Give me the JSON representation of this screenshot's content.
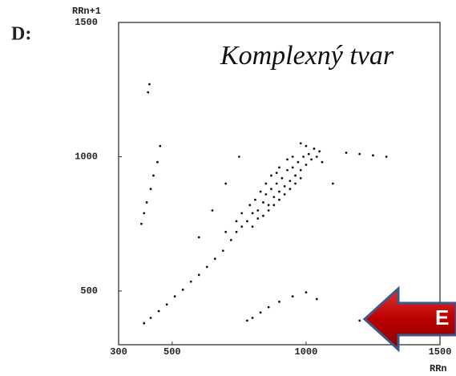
{
  "chart_data": {
    "type": "scatter",
    "panel_label": "D:",
    "annotation": "Komplexný tvar",
    "y_label": "RRn+1",
    "x_label": "RRn",
    "arrow_label": "E",
    "color": "#111111",
    "xlim": [
      300,
      1500
    ],
    "ylim": [
      300,
      1500
    ],
    "xticks": [
      300,
      500,
      1000,
      1500
    ],
    "yticks": [
      500,
      1000,
      1500
    ],
    "x": [
      395,
      420,
      450,
      480,
      510,
      540,
      570,
      600,
      630,
      660,
      690,
      720,
      740,
      760,
      780,
      800,
      820,
      840,
      850,
      860,
      870,
      880,
      890,
      900,
      910,
      920,
      930,
      940,
      950,
      960,
      970,
      980,
      990,
      1000,
      1010,
      1020,
      1030,
      1040,
      800,
      820,
      840,
      860,
      880,
      900,
      920,
      940,
      960,
      980,
      900,
      870,
      850,
      830,
      810,
      790,
      760,
      740,
      700,
      950,
      1000,
      1050,
      1060,
      980,
      930,
      890,
      385,
      395,
      405,
      420,
      430,
      445,
      455,
      410,
      415,
      780,
      800,
      830,
      860,
      900,
      950,
      1000,
      1040,
      1200,
      1150,
      1200,
      1250,
      1300,
      650,
      700,
      750,
      1100,
      600
    ],
    "values": [
      380,
      400,
      425,
      450,
      480,
      505,
      535,
      560,
      590,
      620,
      650,
      690,
      720,
      740,
      760,
      790,
      800,
      830,
      860,
      820,
      880,
      850,
      900,
      870,
      920,
      890,
      950,
      910,
      960,
      930,
      980,
      950,
      1000,
      970,
      1010,
      990,
      1030,
      1000,
      740,
      770,
      780,
      800,
      820,
      840,
      860,
      880,
      900,
      920,
      960,
      930,
      900,
      870,
      840,
      820,
      790,
      760,
      720,
      1000,
      1040,
      1020,
      980,
      1050,
      990,
      940,
      750,
      790,
      830,
      880,
      930,
      980,
      1040,
      1240,
      1270,
      390,
      400,
      420,
      440,
      460,
      480,
      495,
      470,
      390,
      1015,
      1010,
      1005,
      1000,
      800,
      900,
      1000,
      900,
      700
    ]
  }
}
